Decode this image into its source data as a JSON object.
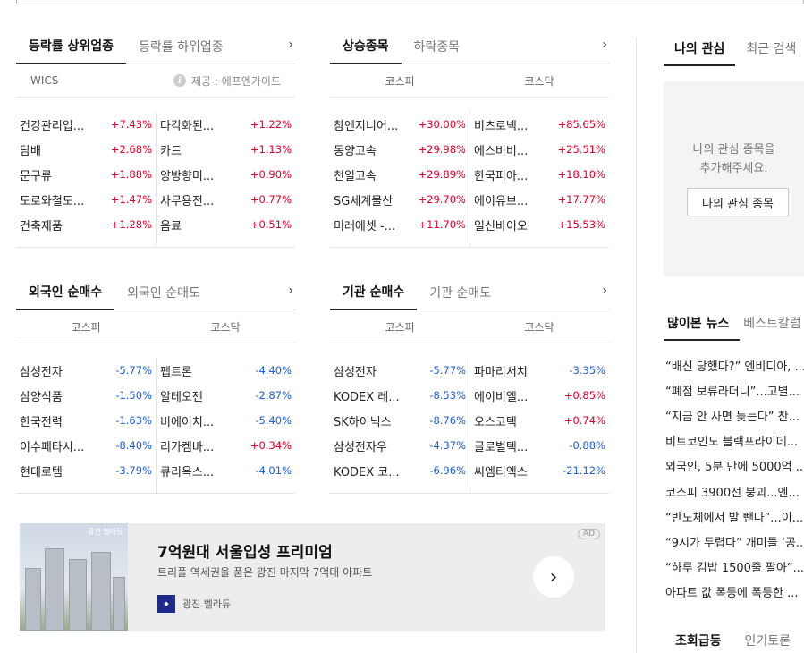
{
  "sector_panel": {
    "tabs": [
      "등락률 상위업종",
      "등락률 하위업종"
    ],
    "more": "›",
    "header_left": "WICS",
    "header_right": "제공 : 에프엔가이드",
    "left": [
      {
        "name": "건강관리업...",
        "value": "+7.43%"
      },
      {
        "name": "담배",
        "value": "+2.68%"
      },
      {
        "name": "문구류",
        "value": "+1.88%"
      },
      {
        "name": "도로와철도...",
        "value": "+1.47%"
      },
      {
        "name": "건축제품",
        "value": "+1.28%"
      }
    ],
    "right": [
      {
        "name": "다각화된...",
        "value": "+1.22%"
      },
      {
        "name": "카드",
        "value": "+1.13%"
      },
      {
        "name": "양방향미...",
        "value": "+0.90%"
      },
      {
        "name": "사무용전...",
        "value": "+0.77%"
      },
      {
        "name": "음료",
        "value": "+0.51%"
      }
    ]
  },
  "rise_panel": {
    "tabs": [
      "상승종목",
      "하락종목"
    ],
    "more": "›",
    "cols": [
      "코스피",
      "코스닥"
    ],
    "left": [
      {
        "name": "참엔지니어...",
        "value": "+30.00%"
      },
      {
        "name": "동양고속",
        "value": "+29.98%"
      },
      {
        "name": "천일고속",
        "value": "+29.89%"
      },
      {
        "name": "SG세계물산",
        "value": "+29.70%"
      },
      {
        "name": "미래에셋 -...",
        "value": "+11.70%"
      }
    ],
    "right": [
      {
        "name": "비츠로넥...",
        "value": "+85.65%"
      },
      {
        "name": "에스비비...",
        "value": "+25.51%"
      },
      {
        "name": "한국피아...",
        "value": "+18.10%"
      },
      {
        "name": "에이유브...",
        "value": "+17.77%"
      },
      {
        "name": "일신바이오",
        "value": "+15.53%"
      }
    ]
  },
  "foreign_panel": {
    "tabs": [
      "외국인 순매수",
      "외국인 순매도"
    ],
    "more": "›",
    "cols": [
      "코스피",
      "코스닥"
    ],
    "left": [
      {
        "name": "삼성전자",
        "value": "-5.77%"
      },
      {
        "name": "삼양식품",
        "value": "-1.50%"
      },
      {
        "name": "한국전력",
        "value": "-1.63%"
      },
      {
        "name": "이수페타시...",
        "value": "-8.40%"
      },
      {
        "name": "현대로템",
        "value": "-3.79%"
      }
    ],
    "right": [
      {
        "name": "펩트론",
        "value": "-4.40%"
      },
      {
        "name": "알테오젠",
        "value": "-2.87%"
      },
      {
        "name": "비에이치...",
        "value": "-5.40%"
      },
      {
        "name": "리가켐바...",
        "value": "+0.34%"
      },
      {
        "name": "큐리옥스...",
        "value": "-4.01%"
      }
    ]
  },
  "inst_panel": {
    "tabs": [
      "기관 순매수",
      "기관 순매도"
    ],
    "more": "›",
    "cols": [
      "코스피",
      "코스닥"
    ],
    "left": [
      {
        "name": "삼성전자",
        "value": "-5.77%"
      },
      {
        "name": "KODEX 레...",
        "value": "-8.53%"
      },
      {
        "name": "SK하이닉스",
        "value": "-8.76%"
      },
      {
        "name": "삼성전자우",
        "value": "-4.37%"
      },
      {
        "name": "KODEX 코...",
        "value": "-6.96%"
      }
    ],
    "right": [
      {
        "name": "파마리서치",
        "value": "-3.35%"
      },
      {
        "name": "에이비엘...",
        "value": "+0.85%"
      },
      {
        "name": "오스코텍",
        "value": "+0.74%"
      },
      {
        "name": "글로벌텍...",
        "value": "-0.88%"
      },
      {
        "name": "씨엠티엑스",
        "value": "-21.12%"
      }
    ]
  },
  "ad": {
    "image_label": "광진 벨라듀",
    "title": "7억원대 서울입성 프리미엄",
    "desc": "트리플 역세권을 품은 광진 마지막 7억대 아파트",
    "brand": "광진 벨라듀",
    "badge": "AD",
    "arrow": "›"
  },
  "sidebar": {
    "watch_tabs": [
      "나의 관심",
      "최근 검색"
    ],
    "watch_msg_1": "나의 관심 종목을",
    "watch_msg_2": "추가해주세요.",
    "watch_btn": "나의 관심 종목",
    "news_tabs": [
      "많이본 뉴스",
      "베스트칼럼"
    ],
    "news": [
      "“배신 당했다?” 엔비디아, ...",
      "“폐점 보류라더니”...고별...",
      "“지금 안 사면 늦는다” 찬...",
      "비트코인도 블랙프라이데...",
      "외국인, 5분 만에 5000억 ...",
      "코스피 3900선 붕괴...엔...",
      "“반도체에서 발 뺀다”...이...",
      "“9시가 두렵다” 개미들 ‘공...",
      "“하루 김밥 1500줄 팔아”...",
      "아파트 값 폭등에 폭등한 ..."
    ],
    "bottom_tabs": [
      "조회급등",
      "인기토론"
    ]
  }
}
